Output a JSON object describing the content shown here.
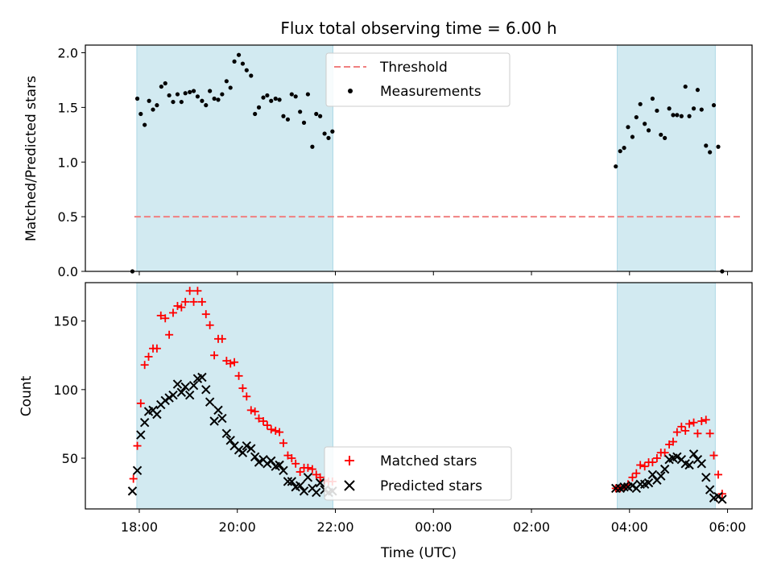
{
  "chart_data": {
    "title": "Flux total observing time = 6.00 h",
    "xlabel": "Time (UTC)",
    "x_tick_labels": [
      "18:00",
      "20:00",
      "22:00",
      "00:00",
      "02:00",
      "04:00",
      "06:00"
    ],
    "x_tick_hours": [
      18,
      20,
      22,
      24,
      26,
      28,
      30
    ],
    "xlim": [
      16.9,
      30.5
    ],
    "shaded_ranges": [
      [
        17.95,
        21.95
      ],
      [
        27.75,
        29.75
      ]
    ],
    "colors": {
      "shade": "#add8e6",
      "threshold": "#f08080",
      "measurements": "#000000",
      "matched": "#ff0000",
      "predicted": "#000000"
    },
    "panels": [
      {
        "type": "scatter",
        "ylabel": "Matched/Predicted stars",
        "ylim": [
          0,
          2.07
        ],
        "y_ticks": [
          0.0,
          0.5,
          1.0,
          1.5,
          2.0
        ],
        "y_tick_labels": [
          "0.0",
          "0.5",
          "1.0",
          "1.5",
          "2.0"
        ],
        "legend": {
          "position": "upper-center",
          "entries": [
            "Threshold",
            "Measurements"
          ]
        },
        "threshold": {
          "name": "Threshold",
          "value": 0.5,
          "x_range": [
            17.9,
            30.3
          ]
        },
        "series": [
          {
            "name": "Measurements",
            "marker": "dot",
            "x": [
              17.86,
              17.96,
              18.03,
              18.11,
              18.2,
              18.28,
              18.36,
              18.45,
              18.53,
              18.61,
              18.69,
              18.78,
              18.86,
              18.94,
              19.03,
              19.11,
              19.19,
              19.28,
              19.36,
              19.44,
              19.53,
              19.61,
              19.69,
              19.78,
              19.86,
              19.94,
              20.03,
              20.11,
              20.19,
              20.28,
              20.36,
              20.44,
              20.53,
              20.61,
              20.69,
              20.78,
              20.86,
              20.94,
              21.03,
              21.11,
              21.19,
              21.28,
              21.36,
              21.44,
              21.53,
              21.61,
              21.69,
              21.78,
              21.86,
              21.94,
              27.72,
              27.81,
              27.89,
              27.97,
              28.06,
              28.14,
              28.22,
              28.31,
              28.39,
              28.47,
              28.56,
              28.64,
              28.72,
              28.81,
              28.89,
              28.97,
              29.06,
              29.14,
              29.22,
              29.31,
              29.39,
              29.47,
              29.56,
              29.64,
              29.72,
              29.81,
              29.89
            ],
            "y": [
              0.0,
              1.58,
              1.44,
              1.34,
              1.56,
              1.48,
              1.52,
              1.69,
              1.72,
              1.61,
              1.55,
              1.62,
              1.55,
              1.63,
              1.64,
              1.65,
              1.6,
              1.56,
              1.52,
              1.65,
              1.58,
              1.57,
              1.62,
              1.74,
              1.68,
              1.92,
              1.98,
              1.9,
              1.84,
              1.79,
              1.44,
              1.5,
              1.59,
              1.61,
              1.56,
              1.58,
              1.57,
              1.42,
              1.39,
              1.62,
              1.6,
              1.46,
              1.36,
              1.62,
              1.14,
              1.44,
              1.42,
              1.26,
              1.22,
              1.28,
              0.96,
              1.1,
              1.13,
              1.32,
              1.23,
              1.41,
              1.53,
              1.35,
              1.29,
              1.58,
              1.47,
              1.25,
              1.22,
              1.49,
              1.43,
              1.43,
              1.42,
              1.69,
              1.42,
              1.49,
              1.66,
              1.48,
              1.15,
              1.09,
              1.52,
              1.14,
              0.0
            ]
          }
        ]
      },
      {
        "type": "scatter",
        "ylabel": "Count",
        "ylim": [
          13,
          178
        ],
        "y_ticks": [
          50,
          100,
          150
        ],
        "y_tick_labels": [
          "50",
          "100",
          "150"
        ],
        "legend": {
          "position": "lower-center",
          "entries": [
            "Matched stars",
            "Predicted stars"
          ]
        },
        "series": [
          {
            "name": "Matched stars",
            "marker": "plus",
            "x": [
              17.88,
              17.96,
              18.03,
              18.11,
              18.19,
              18.28,
              18.36,
              18.44,
              18.53,
              18.61,
              18.69,
              18.78,
              18.86,
              18.94,
              19.03,
              19.11,
              19.19,
              19.28,
              19.36,
              19.44,
              19.53,
              19.61,
              19.69,
              19.78,
              19.86,
              19.94,
              20.03,
              20.11,
              20.19,
              20.28,
              20.36,
              20.44,
              20.53,
              20.61,
              20.69,
              20.78,
              20.86,
              20.94,
              21.03,
              21.11,
              21.19,
              21.28,
              21.36,
              21.44,
              21.53,
              21.61,
              21.69,
              21.78,
              21.86,
              21.94,
              27.72,
              27.81,
              27.89,
              27.97,
              28.06,
              28.14,
              28.22,
              28.31,
              28.39,
              28.47,
              28.56,
              28.64,
              28.72,
              28.81,
              28.89,
              28.97,
              29.06,
              29.14,
              29.22,
              29.31,
              29.39,
              29.47,
              29.56,
              29.64,
              29.72,
              29.81,
              29.89
            ],
            "y": [
              35,
              59,
              90,
              118,
              124,
              130,
              130,
              154,
              152,
              140,
              156,
              161,
              160,
              164,
              172,
              164,
              172,
              164,
              155,
              147,
              125,
              137,
              137,
              121,
              119,
              120,
              110,
              101,
              95,
              85,
              84,
              79,
              77,
              74,
              71,
              70,
              69,
              61,
              52,
              50,
              46,
              40,
              43,
              43,
              42,
              38,
              36,
              34,
              33,
              33,
              28,
              28,
              29,
              31,
              36,
              39,
              45,
              44,
              47,
              47,
              50,
              54,
              54,
              60,
              62,
              69,
              73,
              70,
              75,
              76,
              68,
              77,
              78,
              68,
              52,
              38,
              24
            ]
          },
          {
            "name": "Predicted stars",
            "marker": "x",
            "x": [
              17.86,
              17.96,
              18.03,
              18.11,
              18.19,
              18.28,
              18.36,
              18.44,
              18.53,
              18.61,
              18.69,
              18.78,
              18.86,
              18.94,
              19.03,
              19.11,
              19.19,
              19.28,
              19.36,
              19.44,
              19.53,
              19.61,
              19.69,
              19.78,
              19.86,
              19.94,
              20.03,
              20.11,
              20.19,
              20.28,
              20.36,
              20.44,
              20.53,
              20.61,
              20.69,
              20.78,
              20.86,
              20.94,
              21.03,
              21.11,
              21.19,
              21.28,
              21.36,
              21.44,
              21.53,
              21.61,
              21.69,
              21.78,
              21.86,
              21.94,
              27.72,
              27.81,
              27.89,
              27.97,
              28.06,
              28.14,
              28.22,
              28.31,
              28.39,
              28.47,
              28.56,
              28.64,
              28.72,
              28.81,
              28.89,
              28.97,
              29.06,
              29.14,
              29.22,
              29.31,
              29.39,
              29.47,
              29.56,
              29.64,
              29.72,
              29.81,
              29.89
            ],
            "y": [
              26,
              41,
              67,
              76,
              84,
              85,
              82,
              89,
              92,
              94,
              96,
              104,
              98,
              102,
              96,
              103,
              108,
              109,
              100,
              91,
              77,
              85,
              79,
              68,
              63,
              59,
              56,
              54,
              59,
              57,
              51,
              47,
              49,
              46,
              48,
              44,
              45,
              41,
              33,
              33,
              29,
              30,
              26,
              36,
              28,
              25,
              32,
              27,
              25,
              26,
              28,
              28,
              29,
              29,
              30,
              28,
              31,
              31,
              32,
              38,
              34,
              37,
              42,
              49,
              50,
              51,
              49,
              46,
              45,
              53,
              49,
              46,
              36,
              27,
              21,
              22,
              20
            ]
          }
        ]
      }
    ]
  }
}
